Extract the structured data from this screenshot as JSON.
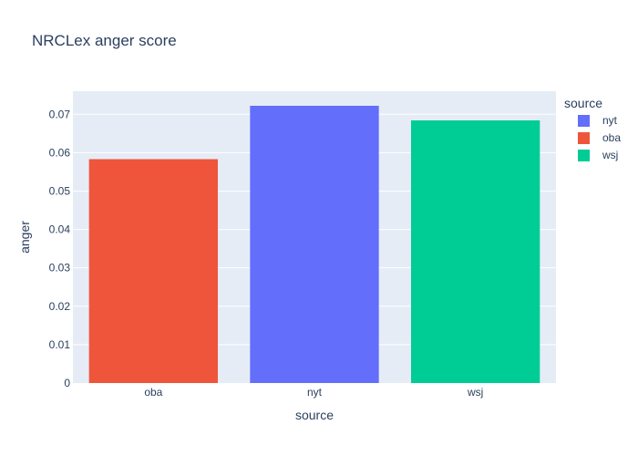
{
  "chart_data": {
    "type": "bar",
    "title": "NRCLex anger score",
    "xlabel": "source",
    "ylabel": "anger",
    "categories": [
      "oba",
      "nyt",
      "wsj"
    ],
    "series": [
      {
        "name": "nyt",
        "category": "nyt",
        "value": 0.0722,
        "color": "#636efa"
      },
      {
        "name": "oba",
        "category": "oba",
        "value": 0.0583,
        "color": "#ef553b"
      },
      {
        "name": "wsj",
        "category": "wsj",
        "value": 0.0684,
        "color": "#00cc96"
      }
    ],
    "ylim": [
      0,
      0.076
    ],
    "yticks": [
      0,
      0.01,
      0.02,
      0.03,
      0.04,
      0.05,
      0.06,
      0.07
    ],
    "ytick_labels": [
      "0",
      "0.01",
      "0.02",
      "0.03",
      "0.04",
      "0.05",
      "0.06",
      "0.07"
    ],
    "legend": {
      "title": "source",
      "placement": "top-right"
    },
    "grid": true,
    "plot_background": "#e5ecf6"
  }
}
